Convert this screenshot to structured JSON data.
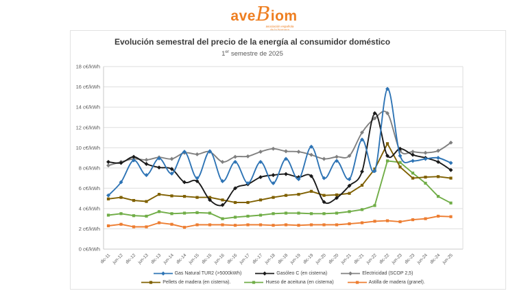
{
  "logo": {
    "prefix": "ave",
    "b": "B",
    "suffix": "iom",
    "tagline_line1": "asociación española",
    "tagline_line2": "de la biomasa",
    "color": "#ee7e20"
  },
  "chart": {
    "subtitle": {
      "prefix": "1",
      "sup": "er",
      "rest": " semestre de 2025"
    }
  },
  "chart_data": {
    "type": "line",
    "title": "Evolución semestral del precio de la energía al consumidor doméstico",
    "subtitle": "1er semestre de 2025",
    "unit": "c€/kWh",
    "ylim": [
      0,
      18
    ],
    "grid": "horizontal",
    "legend_position": "bottom",
    "yticks": [
      0,
      2,
      4,
      6,
      8,
      10,
      12,
      14,
      16,
      18
    ],
    "ytick_labels": [
      "0 c€/kWh",
      "2 c€/kWh",
      "4 c€/kWh",
      "6 c€/kWh",
      "8 c€/kWh",
      "10 c€/kWh",
      "12 c€/kWh",
      "14 c€/kWh",
      "16 c€/kWh",
      "18 c€/kWh"
    ],
    "categories": [
      "dic-11",
      "jun-12",
      "dic-12",
      "jun-13",
      "dic-13",
      "jun-14",
      "dic-14",
      "jun-15",
      "dic-15",
      "jun-16",
      "dic-16",
      "jun-17",
      "dic-17",
      "jun-18",
      "dic-18",
      "jun-19",
      "dic-19",
      "jun-20",
      "dic-20",
      "jun-21",
      "dic-21",
      "jun-22",
      "dic-22",
      "jun-23",
      "dic-23",
      "jun-24",
      "dic-24",
      "jun-25"
    ],
    "series": [
      {
        "name": "Gas Natural TUR2 (>5000kWh)",
        "color": "#2e74b5",
        "smooth": true,
        "marker": "diamond",
        "values": [
          5.3,
          6.6,
          8.75,
          7.3,
          8.95,
          7.45,
          9.6,
          7.0,
          9.65,
          6.7,
          8.6,
          6.5,
          8.6,
          6.5,
          8.9,
          6.9,
          10.1,
          7.0,
          8.7,
          6.9,
          10.8,
          7.7,
          15.8,
          9.2,
          8.7,
          8.9,
          9.0,
          8.5
        ]
      },
      {
        "name": "Gasóleo C (en cisterna)",
        "color": "#1a1a1a",
        "smooth": true,
        "marker": "diamond",
        "values": [
          8.6,
          8.5,
          9.1,
          8.4,
          8.05,
          7.9,
          6.6,
          6.7,
          4.85,
          4.35,
          6.0,
          6.4,
          7.1,
          7.3,
          7.4,
          7.1,
          7.2,
          4.65,
          5.05,
          6.25,
          7.65,
          13.4,
          9.2,
          9.9,
          9.3,
          9.0,
          8.6,
          7.8
        ]
      },
      {
        "name": "Electricidad (SCOP 2,5)",
        "color": "#808080",
        "smooth": true,
        "marker": "diamond",
        "values": [
          8.25,
          8.6,
          8.9,
          8.8,
          9.05,
          8.9,
          9.5,
          9.35,
          9.6,
          8.6,
          9.1,
          9.15,
          9.6,
          9.9,
          9.65,
          9.6,
          9.3,
          8.9,
          9.1,
          9.2,
          11.5,
          12.9,
          13.4,
          9.7,
          9.6,
          9.5,
          9.7,
          10.5
        ]
      },
      {
        "name": "Pellets de madera (en cisterna).",
        "color": "#7f6000",
        "smooth": false,
        "marker": "square",
        "values": [
          4.95,
          5.1,
          4.8,
          4.7,
          5.4,
          5.25,
          5.2,
          5.1,
          5.1,
          4.85,
          4.6,
          4.6,
          4.85,
          5.1,
          5.3,
          5.4,
          5.7,
          5.3,
          5.35,
          5.5,
          6.3,
          7.9,
          10.4,
          8.1,
          7.0,
          7.1,
          7.15,
          7.0
        ]
      },
      {
        "name": "Hueso de aceituna (en cisterna)",
        "color": "#70ad47",
        "smooth": false,
        "marker": "square",
        "values": [
          3.35,
          3.5,
          3.3,
          3.25,
          3.7,
          3.5,
          3.55,
          3.6,
          3.55,
          3.0,
          3.15,
          3.25,
          3.35,
          3.5,
          3.55,
          3.55,
          3.5,
          3.5,
          3.55,
          3.7,
          3.9,
          4.3,
          8.7,
          8.55,
          7.5,
          6.5,
          5.2,
          4.55
        ]
      },
      {
        "name": "Astilla de madera (granel).",
        "color": "#ed7d31",
        "smooth": false,
        "marker": "square",
        "values": [
          2.3,
          2.45,
          2.2,
          2.2,
          2.6,
          2.45,
          2.15,
          2.4,
          2.4,
          2.4,
          2.35,
          2.4,
          2.4,
          2.35,
          2.4,
          2.35,
          2.4,
          2.4,
          2.4,
          2.5,
          2.6,
          2.75,
          2.8,
          2.7,
          2.9,
          3.0,
          3.25,
          3.2
        ]
      }
    ]
  }
}
